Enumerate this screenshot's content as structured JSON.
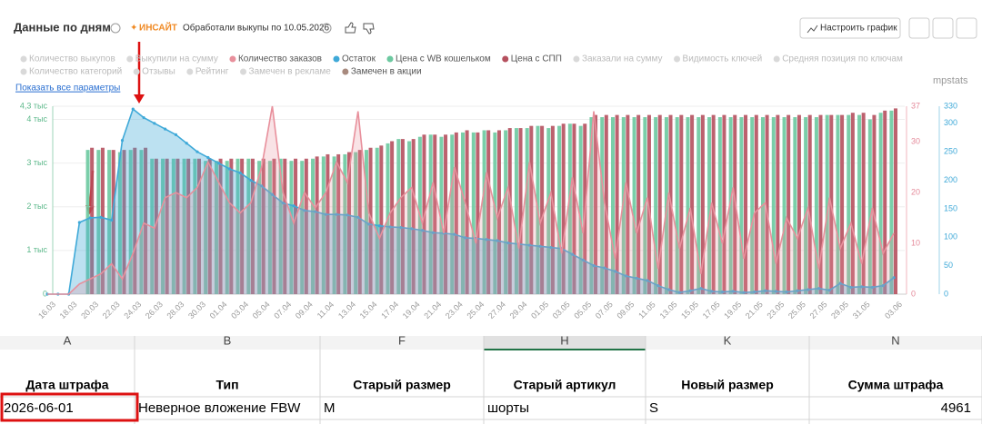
{
  "header": {
    "title": "Данные по дням",
    "insight": "ИНСАЙТ",
    "note": "Обработали выкупы по 10.05.2026",
    "button": "Настроить график",
    "show_all": "Показать все параметры",
    "brand": "mpstats"
  },
  "chart_data": {
    "type": "bar",
    "categories": [
      "16.03",
      null,
      "18.03",
      null,
      "20.03",
      null,
      "22.03",
      null,
      "24.03",
      null,
      "26.03",
      null,
      "28.03",
      null,
      "30.03",
      null,
      "01.04",
      null,
      "03.04",
      null,
      "05.04",
      null,
      "07.04",
      null,
      "09.04",
      null,
      "11.04",
      null,
      "13.04",
      null,
      "15.04",
      null,
      "17.04",
      null,
      "19.04",
      null,
      "21.04",
      null,
      "23.04",
      null,
      "25.04",
      null,
      "27.04",
      null,
      "29.04",
      null,
      "01.05",
      null,
      "03.05",
      null,
      "05.05",
      null,
      "07.05",
      null,
      "09.05",
      null,
      "11.05",
      null,
      "13.05",
      null,
      "15.05",
      null,
      "17.05",
      null,
      "19.05",
      null,
      "21.05",
      null,
      "23.05",
      null,
      "25.05",
      null,
      "27.05",
      null,
      "29.05",
      null,
      "31.05",
      null,
      null,
      "03.06"
    ],
    "series": [
      {
        "name": "Количество выкупов",
        "color": "#d9d9d9"
      },
      {
        "name": "Выкупили на сумму",
        "color": "#d9d9d9"
      },
      {
        "name": "Количество заказов",
        "color": "#e8909c",
        "type": "line",
        "axis": "y2",
        "values": [
          0,
          0,
          0,
          2,
          3,
          4,
          6,
          3,
          8,
          14,
          13,
          19,
          20,
          19,
          21,
          26,
          22,
          18,
          16,
          18,
          25,
          37,
          20,
          14,
          20,
          17,
          20,
          26,
          22,
          36,
          16,
          11,
          16,
          19,
          21,
          14,
          22,
          12,
          25,
          18,
          10,
          24,
          15,
          21,
          9,
          26,
          14,
          20,
          8,
          23,
          12,
          36,
          18,
          7,
          22,
          12,
          19,
          5,
          20,
          9,
          17,
          4,
          18,
          10,
          21,
          7,
          16,
          18,
          6,
          15,
          11,
          17,
          5,
          19,
          9,
          14,
          6,
          17,
          8,
          12
        ]
      },
      {
        "name": "Остаток",
        "color": "#3fa9d8",
        "type": "area",
        "axis": "y3",
        "values": [
          0,
          0,
          0,
          126,
          134,
          135,
          130,
          270,
          325,
          310,
          300,
          290,
          280,
          265,
          250,
          240,
          230,
          220,
          213,
          200,
          190,
          175,
          160,
          155,
          147,
          145,
          140,
          140,
          139,
          135,
          123,
          120,
          118,
          117,
          115,
          112,
          108,
          107,
          105,
          99,
          98,
          96,
          94,
          90,
          88,
          86,
          84,
          82,
          80,
          70,
          60,
          50,
          46,
          40,
          32,
          28,
          24,
          15,
          8,
          3,
          6,
          10,
          5,
          4,
          5,
          3,
          4,
          6,
          5,
          4,
          6,
          8,
          10,
          7,
          19,
          12,
          13,
          12,
          15,
          29
        ]
      },
      {
        "name": "Цена с WB кошельком",
        "color": "#6cc9a0",
        "type": "bar",
        "values": [
          null,
          null,
          null,
          null,
          3300,
          3300,
          3300,
          3250,
          3300,
          3300,
          3100,
          3100,
          3100,
          3100,
          3100,
          3050,
          3050,
          3050,
          3100,
          3100,
          3050,
          3050,
          3100,
          3050,
          3050,
          3100,
          3150,
          3150,
          3200,
          3250,
          3300,
          3350,
          3450,
          3550,
          3500,
          3600,
          3650,
          3600,
          3650,
          3700,
          3700,
          3750,
          3700,
          3750,
          3800,
          3800,
          3850,
          3800,
          3850,
          3900,
          3850,
          4050,
          4050,
          4050,
          4050,
          4050,
          4050,
          4050,
          4050,
          4050,
          4050,
          4050,
          4050,
          4050,
          4050,
          4050,
          4050,
          4050,
          4050,
          4050,
          4050,
          4050,
          4050,
          4100,
          4100,
          4100,
          4100,
          4000,
          4150,
          4200
        ]
      },
      {
        "name": "Цена с СПП",
        "color": "#b5505e",
        "type": "bar",
        "values": [
          null,
          null,
          null,
          null,
          3350,
          3350,
          3300,
          3300,
          3350,
          3350,
          3100,
          3100,
          3100,
          3100,
          3100,
          3100,
          3100,
          3100,
          3100,
          3100,
          3100,
          3100,
          3100,
          3100,
          3100,
          3150,
          3200,
          3200,
          3250,
          3300,
          3350,
          3400,
          3500,
          3550,
          3550,
          3650,
          3650,
          3650,
          3700,
          3750,
          3700,
          3750,
          3750,
          3800,
          3800,
          3850,
          3850,
          3850,
          3900,
          3900,
          3900,
          4100,
          4100,
          4100,
          4100,
          4100,
          4100,
          4100,
          4100,
          4100,
          4100,
          4100,
          4100,
          4100,
          4100,
          4100,
          4100,
          4100,
          4100,
          4100,
          4100,
          4100,
          4100,
          4100,
          4100,
          4150,
          4150,
          4100,
          4200,
          4250
        ]
      },
      {
        "name": "Заказали на сумму",
        "color": "#d9d9d9"
      },
      {
        "name": "Видимость ключей",
        "color": "#d9d9d9"
      },
      {
        "name": "Средняя позиция по ключам",
        "color": "#d9d9d9"
      },
      {
        "name": "Количество категорий",
        "color": "#d9d9d9"
      },
      {
        "name": "Отзывы",
        "color": "#d9d9d9"
      },
      {
        "name": "Рейтинг",
        "color": "#d9d9d9"
      },
      {
        "name": "Замечен в рекламе",
        "color": "#d9d9d9"
      },
      {
        "name": "Замечен в акции",
        "color": "#a88a7e"
      }
    ],
    "ylim": [
      0,
      4300
    ],
    "yticks": [
      0,
      {
        "value": 1000,
        "label": "1 тыс"
      },
      {
        "value": 2000,
        "label": "2 тыс"
      },
      {
        "value": 3000,
        "label": "3 тыс"
      },
      {
        "value": 4000,
        "label": "4 тыс"
      },
      {
        "value": 4300,
        "label": "4,3 тыс"
      }
    ],
    "y2lim": [
      0,
      37
    ],
    "y2ticks": [
      0,
      10,
      20,
      30,
      37
    ],
    "y3lim": [
      0,
      330
    ],
    "y3ticks": [
      0,
      50,
      100,
      150,
      200,
      250,
      300,
      330
    ],
    "grid": true
  },
  "table": {
    "columns": [
      "A",
      "B",
      "F",
      "H",
      "K",
      "N"
    ],
    "header": [
      "Дата штрафа",
      "Тип",
      "Старый размер",
      "Старый артикул",
      "Новый размер",
      "Сумма штрафа"
    ],
    "rows": [
      [
        "2026-06-01",
        "Неверное вложение FBW",
        "M",
        "шорты",
        "S",
        4961
      ]
    ]
  }
}
